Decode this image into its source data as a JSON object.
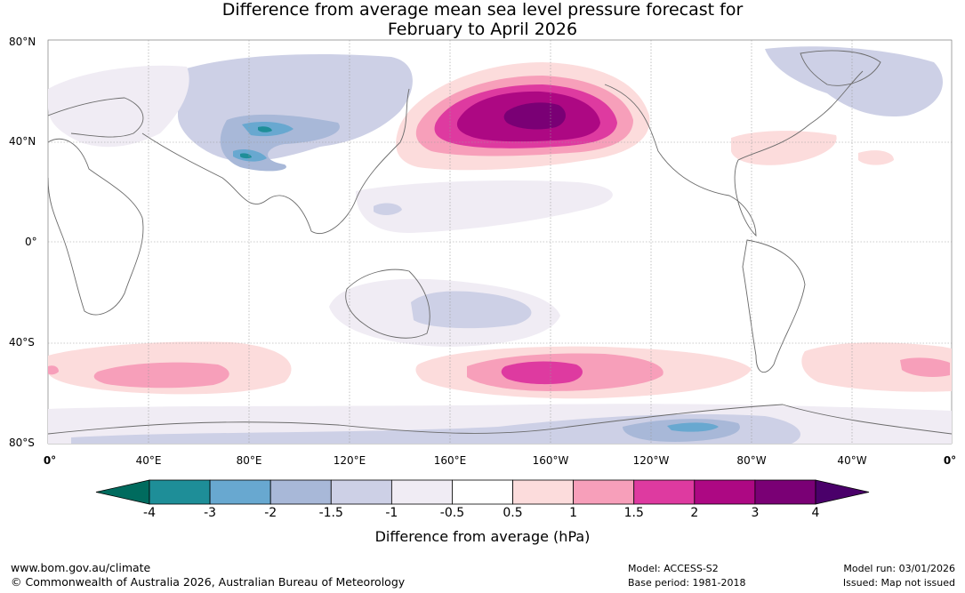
{
  "title": {
    "line1": "Difference from average mean sea level pressure forecast for",
    "line2": "February to April 2026"
  },
  "axes": {
    "lat_labels": [
      "80°N",
      "40°N",
      "0°",
      "40°S",
      "80°S"
    ],
    "lon_labels": [
      "0°",
      "40°E",
      "80°E",
      "120°E",
      "160°E",
      "160°W",
      "120°W",
      "80°W",
      "40°W",
      "0°"
    ]
  },
  "colorbar": {
    "ticks": [
      "-4",
      "-3",
      "-2",
      "-1.5",
      "-1",
      "-0.5",
      "0.5",
      "1",
      "1.5",
      "2",
      "3",
      "4"
    ],
    "colors": [
      "#006b5e",
      "#1e8e98",
      "#68a8d0",
      "#a8b8d8",
      "#cdd0e6",
      "#f0ecf4",
      "#ffffff",
      "#fcdcdc",
      "#f79fba",
      "#de3aa0",
      "#ad0883",
      "#7a0075",
      "#4a006a"
    ],
    "label": "Difference from average (hPa)"
  },
  "chart_data": {
    "type": "contour-map",
    "title": "Difference from average mean sea level pressure forecast for February to April 2026",
    "units": "hPa",
    "levels": [
      -4,
      -3,
      -2,
      -1.5,
      -1,
      -0.5,
      0.5,
      1,
      1.5,
      2,
      3,
      4
    ],
    "features": [
      {
        "region": "North Pacific / Aleutians",
        "anomaly_range": [
          3,
          4
        ]
      },
      {
        "region": "South Pacific (~50°S, 160°W)",
        "anomaly_range": [
          1.5,
          2
        ]
      },
      {
        "region": "South Indian Ocean (~50°S, 60°E)",
        "anomaly_range": [
          1,
          1.5
        ]
      },
      {
        "region": "South Atlantic (~50°S, 10°W)",
        "anomaly_range": [
          1,
          1.5
        ]
      },
      {
        "region": "Northwest Atlantic (~40°N, 60°W)",
        "anomaly_range": [
          0.5,
          1
        ]
      },
      {
        "region": "Tibetan Plateau / Central Asia",
        "anomaly_range": [
          -3,
          -2
        ]
      },
      {
        "region": "Antarctic coast (~70°S, 110°W)",
        "anomaly_range": [
          -3,
          -2
        ]
      },
      {
        "region": "Eurasia (broad)",
        "anomaly_range": [
          -1,
          -0.5
        ]
      }
    ]
  },
  "footer": {
    "website": "www.bom.gov.au/climate",
    "copyright": "© Commonwealth of Australia 2026, Australian Bureau of Meteorology",
    "model": "Model: ACCESS-S2",
    "base_period": "Base period: 1981-2018",
    "model_run": "Model run: 03/01/2026",
    "issued": "Issued: Map not issued"
  }
}
